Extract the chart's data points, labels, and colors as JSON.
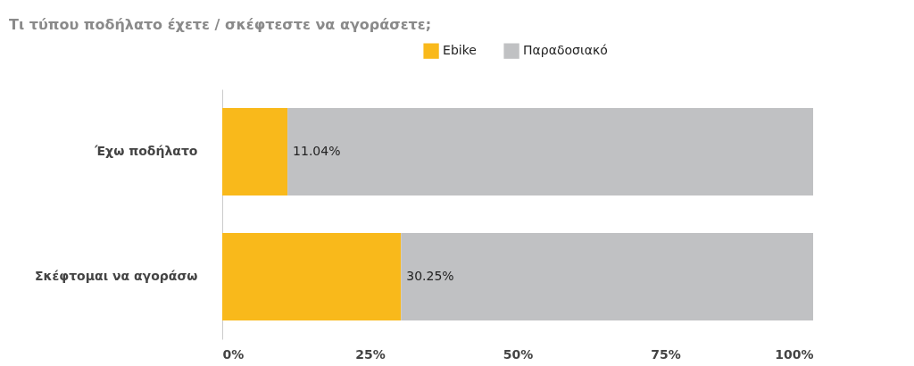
{
  "chart_data": {
    "type": "bar",
    "orientation": "horizontal",
    "stacked": true,
    "title": "Τι τύπου ποδήλατο έχετε / σκέφτεστε να αγοράσετε;",
    "categories": [
      "Έχω ποδήλατο",
      "Σκέφτομαι να αγοράσω"
    ],
    "series": [
      {
        "name": "Ebike",
        "color": "#f9b91b",
        "values": [
          11.04,
          30.25
        ],
        "value_labels": [
          "11.04%",
          "30.25%"
        ]
      },
      {
        "name": "Παραδοσιακό",
        "color": "#c0c1c3",
        "values": [
          88.96,
          69.75
        ]
      }
    ],
    "xlim": [
      0,
      100
    ],
    "xticks": [
      {
        "value": 0,
        "label": "0%"
      },
      {
        "value": 25,
        "label": "25%"
      },
      {
        "value": 50,
        "label": "50%"
      },
      {
        "value": 75,
        "label": "75%"
      },
      {
        "value": 100,
        "label": "100%"
      }
    ],
    "grid": false,
    "legend": "top"
  }
}
